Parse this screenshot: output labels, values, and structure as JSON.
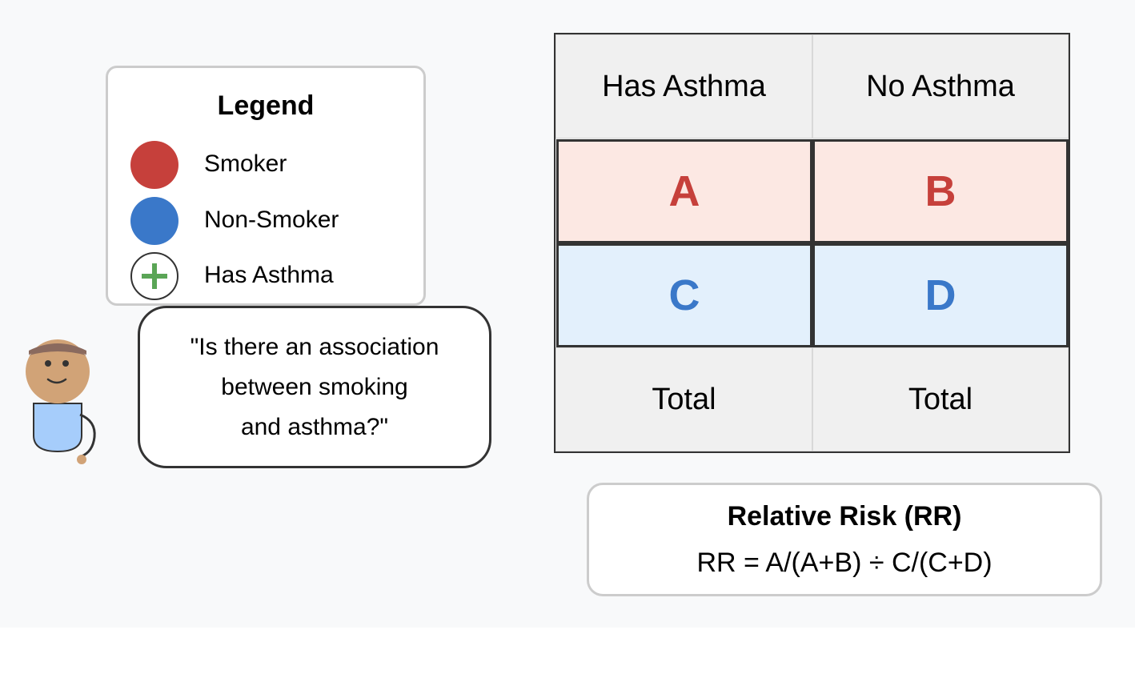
{
  "legend": {
    "title": "Legend",
    "items": [
      {
        "label": "Smoker",
        "color": "#c6403b",
        "icon": "red-circle"
      },
      {
        "label": "Non-Smoker",
        "color": "#3a78c9",
        "icon": "blue-circle"
      },
      {
        "label": "Has Asthma",
        "color": "#5aa556",
        "icon": "plus-circle"
      }
    ]
  },
  "speech_bubble": {
    "lines": [
      "\"Is there an association",
      "between smoking",
      "and asthma?\""
    ]
  },
  "contingency_table": {
    "headers": [
      "Has Asthma",
      "No Asthma"
    ],
    "rows": [
      {
        "group": "smoker",
        "cells": [
          "A",
          "B"
        ],
        "fill": "#fce8e3",
        "text_color": "#c6403b"
      },
      {
        "group": "non-smoker",
        "cells": [
          "C",
          "D"
        ],
        "fill": "#e3f0fc",
        "text_color": "#3a78c9"
      }
    ],
    "totals": [
      "Total",
      "Total"
    ]
  },
  "relative_risk": {
    "title": "Relative Risk (RR)",
    "formula": "RR = A/(A+B) ÷ C/(C+D)"
  }
}
